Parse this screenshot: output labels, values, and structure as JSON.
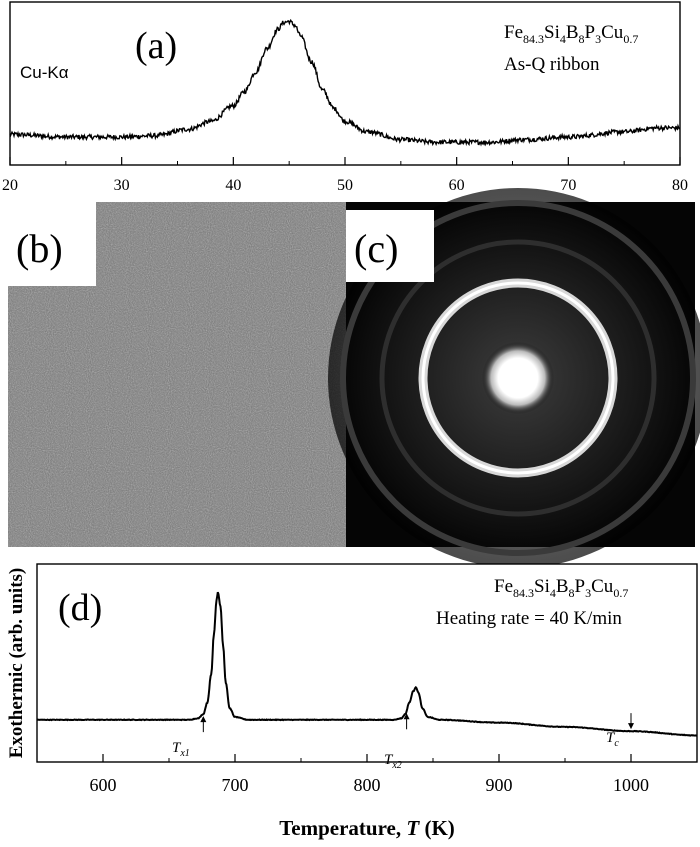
{
  "panel_a": {
    "label": "(a)",
    "radiation": "Cu-Kα",
    "composition": {
      "Fe": "Fe",
      "Fe_sub": "84.3",
      "Si": "Si",
      "Si_sub": "4",
      "B": "B",
      "B_sub": "8",
      "P": "P",
      "P_sub": "3",
      "Cu": "Cu",
      "Cu_sub": "0.7"
    },
    "sample": "As-Q ribbon"
  },
  "panel_b": {
    "label": "(b)"
  },
  "panel_c": {
    "label": "(c)"
  },
  "panel_d": {
    "label": "(d)",
    "composition": {
      "Fe": "Fe",
      "Fe_sub": "84.3",
      "Si": "Si",
      "Si_sub": "4",
      "B": "B",
      "B_sub": "8",
      "P": "P",
      "P_sub": "3",
      "Cu": "Cu",
      "Cu_sub": "0.7"
    },
    "heating_rate": "Heating rate = 40 K/min",
    "ylabel": "Exothermic (arb. units)",
    "xlabel_main": "Temperature, ",
    "xlabel_sym": "T",
    "xlabel_unit": " (K)",
    "tx1": {
      "T": "T",
      "sub": "x1"
    },
    "tx2": {
      "T": "T",
      "sub": "x2"
    },
    "tc": {
      "T": "T",
      "sub": "c"
    }
  },
  "chart_data": [
    {
      "type": "line",
      "panel": "a",
      "xlim": [
        20,
        80
      ],
      "xticks": [
        20,
        30,
        40,
        50,
        60,
        70,
        80
      ],
      "x": [
        20,
        25,
        30,
        33,
        36,
        38,
        40,
        41,
        42,
        43,
        44,
        44.5,
        45,
        45.5,
        46,
        47,
        48,
        49,
        50,
        52,
        55,
        58,
        60,
        63,
        66,
        70,
        75,
        78,
        80
      ],
      "y": [
        0.12,
        0.1,
        0.1,
        0.11,
        0.16,
        0.22,
        0.34,
        0.45,
        0.6,
        0.78,
        0.93,
        0.98,
        0.99,
        0.96,
        0.88,
        0.68,
        0.46,
        0.32,
        0.22,
        0.14,
        0.08,
        0.06,
        0.06,
        0.06,
        0.08,
        0.1,
        0.14,
        0.17,
        0.17
      ]
    },
    {
      "type": "line",
      "panel": "d",
      "xlim": [
        550,
        1050
      ],
      "xticks": [
        600,
        700,
        800,
        900,
        1000
      ],
      "x": [
        550,
        600,
        650,
        665,
        672,
        676,
        679,
        682,
        684,
        686,
        687,
        689,
        691,
        693,
        696,
        700,
        710,
        750,
        800,
        820,
        826,
        829,
        832,
        835,
        837,
        839,
        842,
        846,
        855,
        900,
        950,
        1000,
        1050
      ],
      "y": [
        0.1,
        0.1,
        0.1,
        0.1,
        0.11,
        0.14,
        0.22,
        0.42,
        0.7,
        0.94,
        1.0,
        0.9,
        0.62,
        0.36,
        0.18,
        0.12,
        0.1,
        0.1,
        0.1,
        0.1,
        0.11,
        0.14,
        0.22,
        0.3,
        0.33,
        0.29,
        0.18,
        0.12,
        0.1,
        0.08,
        0.05,
        0.02,
        -0.01
      ],
      "markers": [
        {
          "name": "Tx1",
          "x": 676
        },
        {
          "name": "Tx2",
          "x": 830
        },
        {
          "name": "Tc",
          "x": 1000
        }
      ]
    }
  ]
}
